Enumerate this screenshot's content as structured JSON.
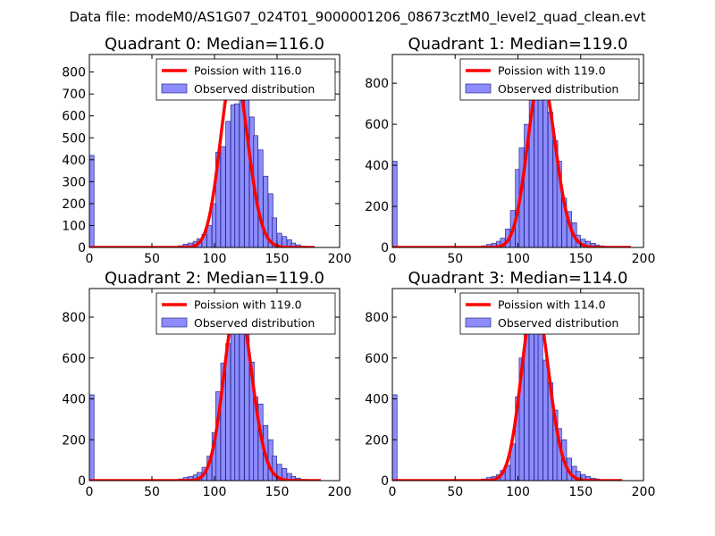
{
  "suptitle": "Data file: modeM0/AS1G07_024T01_9000001206_08673cztM0_level2_quad_clean.evt",
  "colors": {
    "bar_fill": "#8080ff",
    "bar_edge": "#2a2a8a",
    "curve": "#ff0000",
    "axes": "#000000"
  },
  "legend": {
    "observed_label": "Observed distribution"
  },
  "chart_data": [
    {
      "type": "bar",
      "title": "Quadrant 0: Median=116.0",
      "poisson_label": "Poission with 116.0",
      "poisson_mean": 116.0,
      "poisson_scale": 820,
      "curve_range": [
        0,
        180
      ],
      "xlim": [
        0,
        200
      ],
      "ylim": [
        0,
        880
      ],
      "xticks": [
        0,
        50,
        100,
        150,
        200
      ],
      "yticks": [
        0,
        100,
        200,
        300,
        400,
        500,
        600,
        700,
        800
      ],
      "bin_width": 3.75,
      "bins": [
        [
          0,
          420
        ],
        [
          67,
          3
        ],
        [
          71,
          8
        ],
        [
          75,
          15
        ],
        [
          79,
          20
        ],
        [
          83,
          28
        ],
        [
          86,
          40
        ],
        [
          90,
          60
        ],
        [
          94,
          100
        ],
        [
          98,
          200
        ],
        [
          101,
          435
        ],
        [
          105,
          460
        ],
        [
          109,
          575
        ],
        [
          113,
          650
        ],
        [
          116,
          655
        ],
        [
          120,
          770
        ],
        [
          124,
          730
        ],
        [
          128,
          595
        ],
        [
          131,
          510
        ],
        [
          135,
          445
        ],
        [
          139,
          325
        ],
        [
          143,
          245
        ],
        [
          146,
          135
        ],
        [
          150,
          65
        ],
        [
          154,
          50
        ],
        [
          158,
          35
        ],
        [
          161,
          20
        ],
        [
          165,
          12
        ],
        [
          169,
          6
        ],
        [
          173,
          3
        ]
      ]
    },
    {
      "type": "bar",
      "title": "Quadrant 1: Median=119.0",
      "poisson_label": "Poission with 119.0",
      "poisson_mean": 119.0,
      "poisson_scale": 840,
      "curve_range": [
        0,
        190
      ],
      "xlim": [
        0,
        200
      ],
      "ylim": [
        0,
        940
      ],
      "xticks": [
        0,
        50,
        100,
        150,
        200
      ],
      "yticks": [
        0,
        200,
        400,
        600,
        800
      ],
      "bin_width": 3.75,
      "bins": [
        [
          0,
          420
        ],
        [
          67,
          3
        ],
        [
          71,
          8
        ],
        [
          75,
          15
        ],
        [
          79,
          20
        ],
        [
          83,
          30
        ],
        [
          86,
          45
        ],
        [
          90,
          90
        ],
        [
          94,
          180
        ],
        [
          98,
          380
        ],
        [
          101,
          485
        ],
        [
          105,
          600
        ],
        [
          109,
          790
        ],
        [
          113,
          830
        ],
        [
          116,
          850
        ],
        [
          120,
          800
        ],
        [
          124,
          660
        ],
        [
          128,
          520
        ],
        [
          131,
          420
        ],
        [
          135,
          240
        ],
        [
          139,
          175
        ],
        [
          143,
          120
        ],
        [
          146,
          60
        ],
        [
          150,
          40
        ],
        [
          154,
          30
        ],
        [
          158,
          20
        ],
        [
          161,
          12
        ],
        [
          165,
          8
        ],
        [
          169,
          5
        ],
        [
          173,
          3
        ]
      ]
    },
    {
      "type": "bar",
      "title": "Quadrant 2: Median=119.0",
      "poisson_label": "Poission with 119.0",
      "poisson_mean": 119.0,
      "poisson_scale": 880,
      "curve_range": [
        0,
        185
      ],
      "xlim": [
        0,
        200
      ],
      "ylim": [
        0,
        940
      ],
      "xticks": [
        0,
        50,
        100,
        150,
        200
      ],
      "yticks": [
        0,
        200,
        400,
        600,
        800
      ],
      "bin_width": 3.75,
      "bins": [
        [
          0,
          420
        ],
        [
          67,
          3
        ],
        [
          71,
          8
        ],
        [
          75,
          15
        ],
        [
          79,
          20
        ],
        [
          83,
          28
        ],
        [
          86,
          40
        ],
        [
          90,
          65
        ],
        [
          94,
          120
        ],
        [
          98,
          235
        ],
        [
          101,
          435
        ],
        [
          105,
          575
        ],
        [
          109,
          670
        ],
        [
          113,
          880
        ],
        [
          116,
          880
        ],
        [
          120,
          820
        ],
        [
          124,
          775
        ],
        [
          128,
          580
        ],
        [
          131,
          410
        ],
        [
          135,
          375
        ],
        [
          139,
          270
        ],
        [
          143,
          200
        ],
        [
          146,
          120
        ],
        [
          150,
          80
        ],
        [
          154,
          60
        ],
        [
          158,
          35
        ],
        [
          161,
          20
        ],
        [
          165,
          12
        ],
        [
          169,
          6
        ],
        [
          173,
          3
        ]
      ]
    },
    {
      "type": "bar",
      "title": "Quadrant 3: Median=114.0",
      "poisson_label": "Poission with 114.0",
      "poisson_mean": 114.0,
      "poisson_scale": 890,
      "curve_range": [
        0,
        183
      ],
      "xlim": [
        0,
        200
      ],
      "ylim": [
        0,
        940
      ],
      "xticks": [
        0,
        50,
        100,
        150,
        200
      ],
      "yticks": [
        0,
        200,
        400,
        600,
        800
      ],
      "bin_width": 3.75,
      "bins": [
        [
          0,
          420
        ],
        [
          67,
          3
        ],
        [
          71,
          8
        ],
        [
          75,
          15
        ],
        [
          79,
          20
        ],
        [
          83,
          30
        ],
        [
          86,
          50
        ],
        [
          90,
          75
        ],
        [
          94,
          180
        ],
        [
          98,
          410
        ],
        [
          101,
          600
        ],
        [
          105,
          790
        ],
        [
          109,
          860
        ],
        [
          113,
          880
        ],
        [
          116,
          790
        ],
        [
          120,
          590
        ],
        [
          124,
          480
        ],
        [
          128,
          345
        ],
        [
          131,
          255
        ],
        [
          135,
          200
        ],
        [
          139,
          110
        ],
        [
          143,
          70
        ],
        [
          146,
          45
        ],
        [
          150,
          30
        ],
        [
          154,
          20
        ],
        [
          158,
          12
        ],
        [
          161,
          8
        ],
        [
          165,
          5
        ],
        [
          169,
          3
        ],
        [
          173,
          2
        ]
      ]
    }
  ]
}
